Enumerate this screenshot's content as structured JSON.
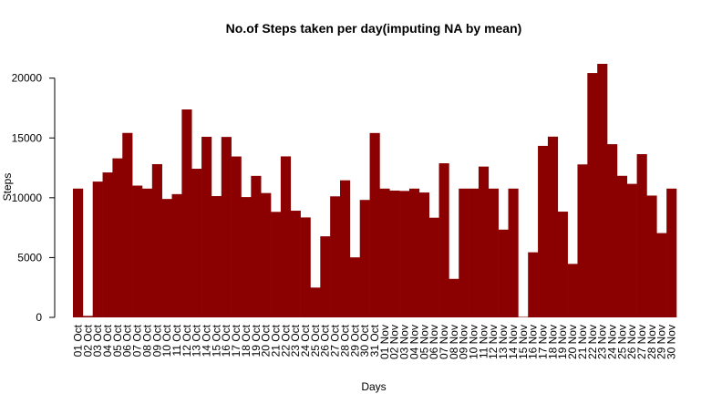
{
  "chart_data": {
    "type": "bar",
    "title": "No.of Steps taken per day(imputing NA by mean)",
    "xlabel": "Days",
    "ylabel": "Steps",
    "ylim": [
      0,
      21500
    ],
    "yticks": [
      0,
      5000,
      10000,
      15000,
      20000
    ],
    "bar_color": "#8b0000",
    "grid": false,
    "categories": [
      "01 Oct",
      "02 Oct",
      "03 Oct",
      "04 Oct",
      "05 Oct",
      "06 Oct",
      "07 Oct",
      "08 Oct",
      "09 Oct",
      "10 Oct",
      "11 Oct",
      "12 Oct",
      "13 Oct",
      "14 Oct",
      "15 Oct",
      "16 Oct",
      "17 Oct",
      "18 Oct",
      "19 Oct",
      "20 Oct",
      "21 Oct",
      "22 Oct",
      "23 Oct",
      "24 Oct",
      "25 Oct",
      "26 Oct",
      "27 Oct",
      "28 Oct",
      "29 Oct",
      "30 Oct",
      "31 Oct",
      "01 Nov",
      "02 Nov",
      "03 Nov",
      "04 Nov",
      "05 Nov",
      "06 Nov",
      "07 Nov",
      "08 Nov",
      "09 Nov",
      "10 Nov",
      "11 Nov",
      "12 Nov",
      "13 Nov",
      "14 Nov",
      "15 Nov",
      "16 Nov",
      "17 Nov",
      "18 Nov",
      "19 Nov",
      "20 Nov",
      "21 Nov",
      "22 Nov",
      "23 Nov",
      "24 Nov",
      "25 Nov",
      "26 Nov",
      "27 Nov",
      "28 Nov",
      "29 Nov",
      "30 Nov"
    ],
    "values": [
      10766,
      126,
      11352,
      12116,
      13294,
      15420,
      11015,
      10766,
      12811,
      9900,
      10304,
      17382,
      12426,
      15098,
      10139,
      15084,
      13452,
      10056,
      11829,
      10395,
      8821,
      13460,
      8918,
      8355,
      2492,
      6778,
      10119,
      11458,
      5018,
      9819,
      15414,
      10766,
      10600,
      10571,
      10766,
      10439,
      8334,
      12883,
      3219,
      10766,
      10766,
      12608,
      10765,
      7336,
      10766,
      41,
      5441,
      14339,
      15110,
      8841,
      4472,
      12787,
      20427,
      21194,
      14478,
      11834,
      11162,
      13646,
      10183,
      7047,
      10766
    ]
  }
}
